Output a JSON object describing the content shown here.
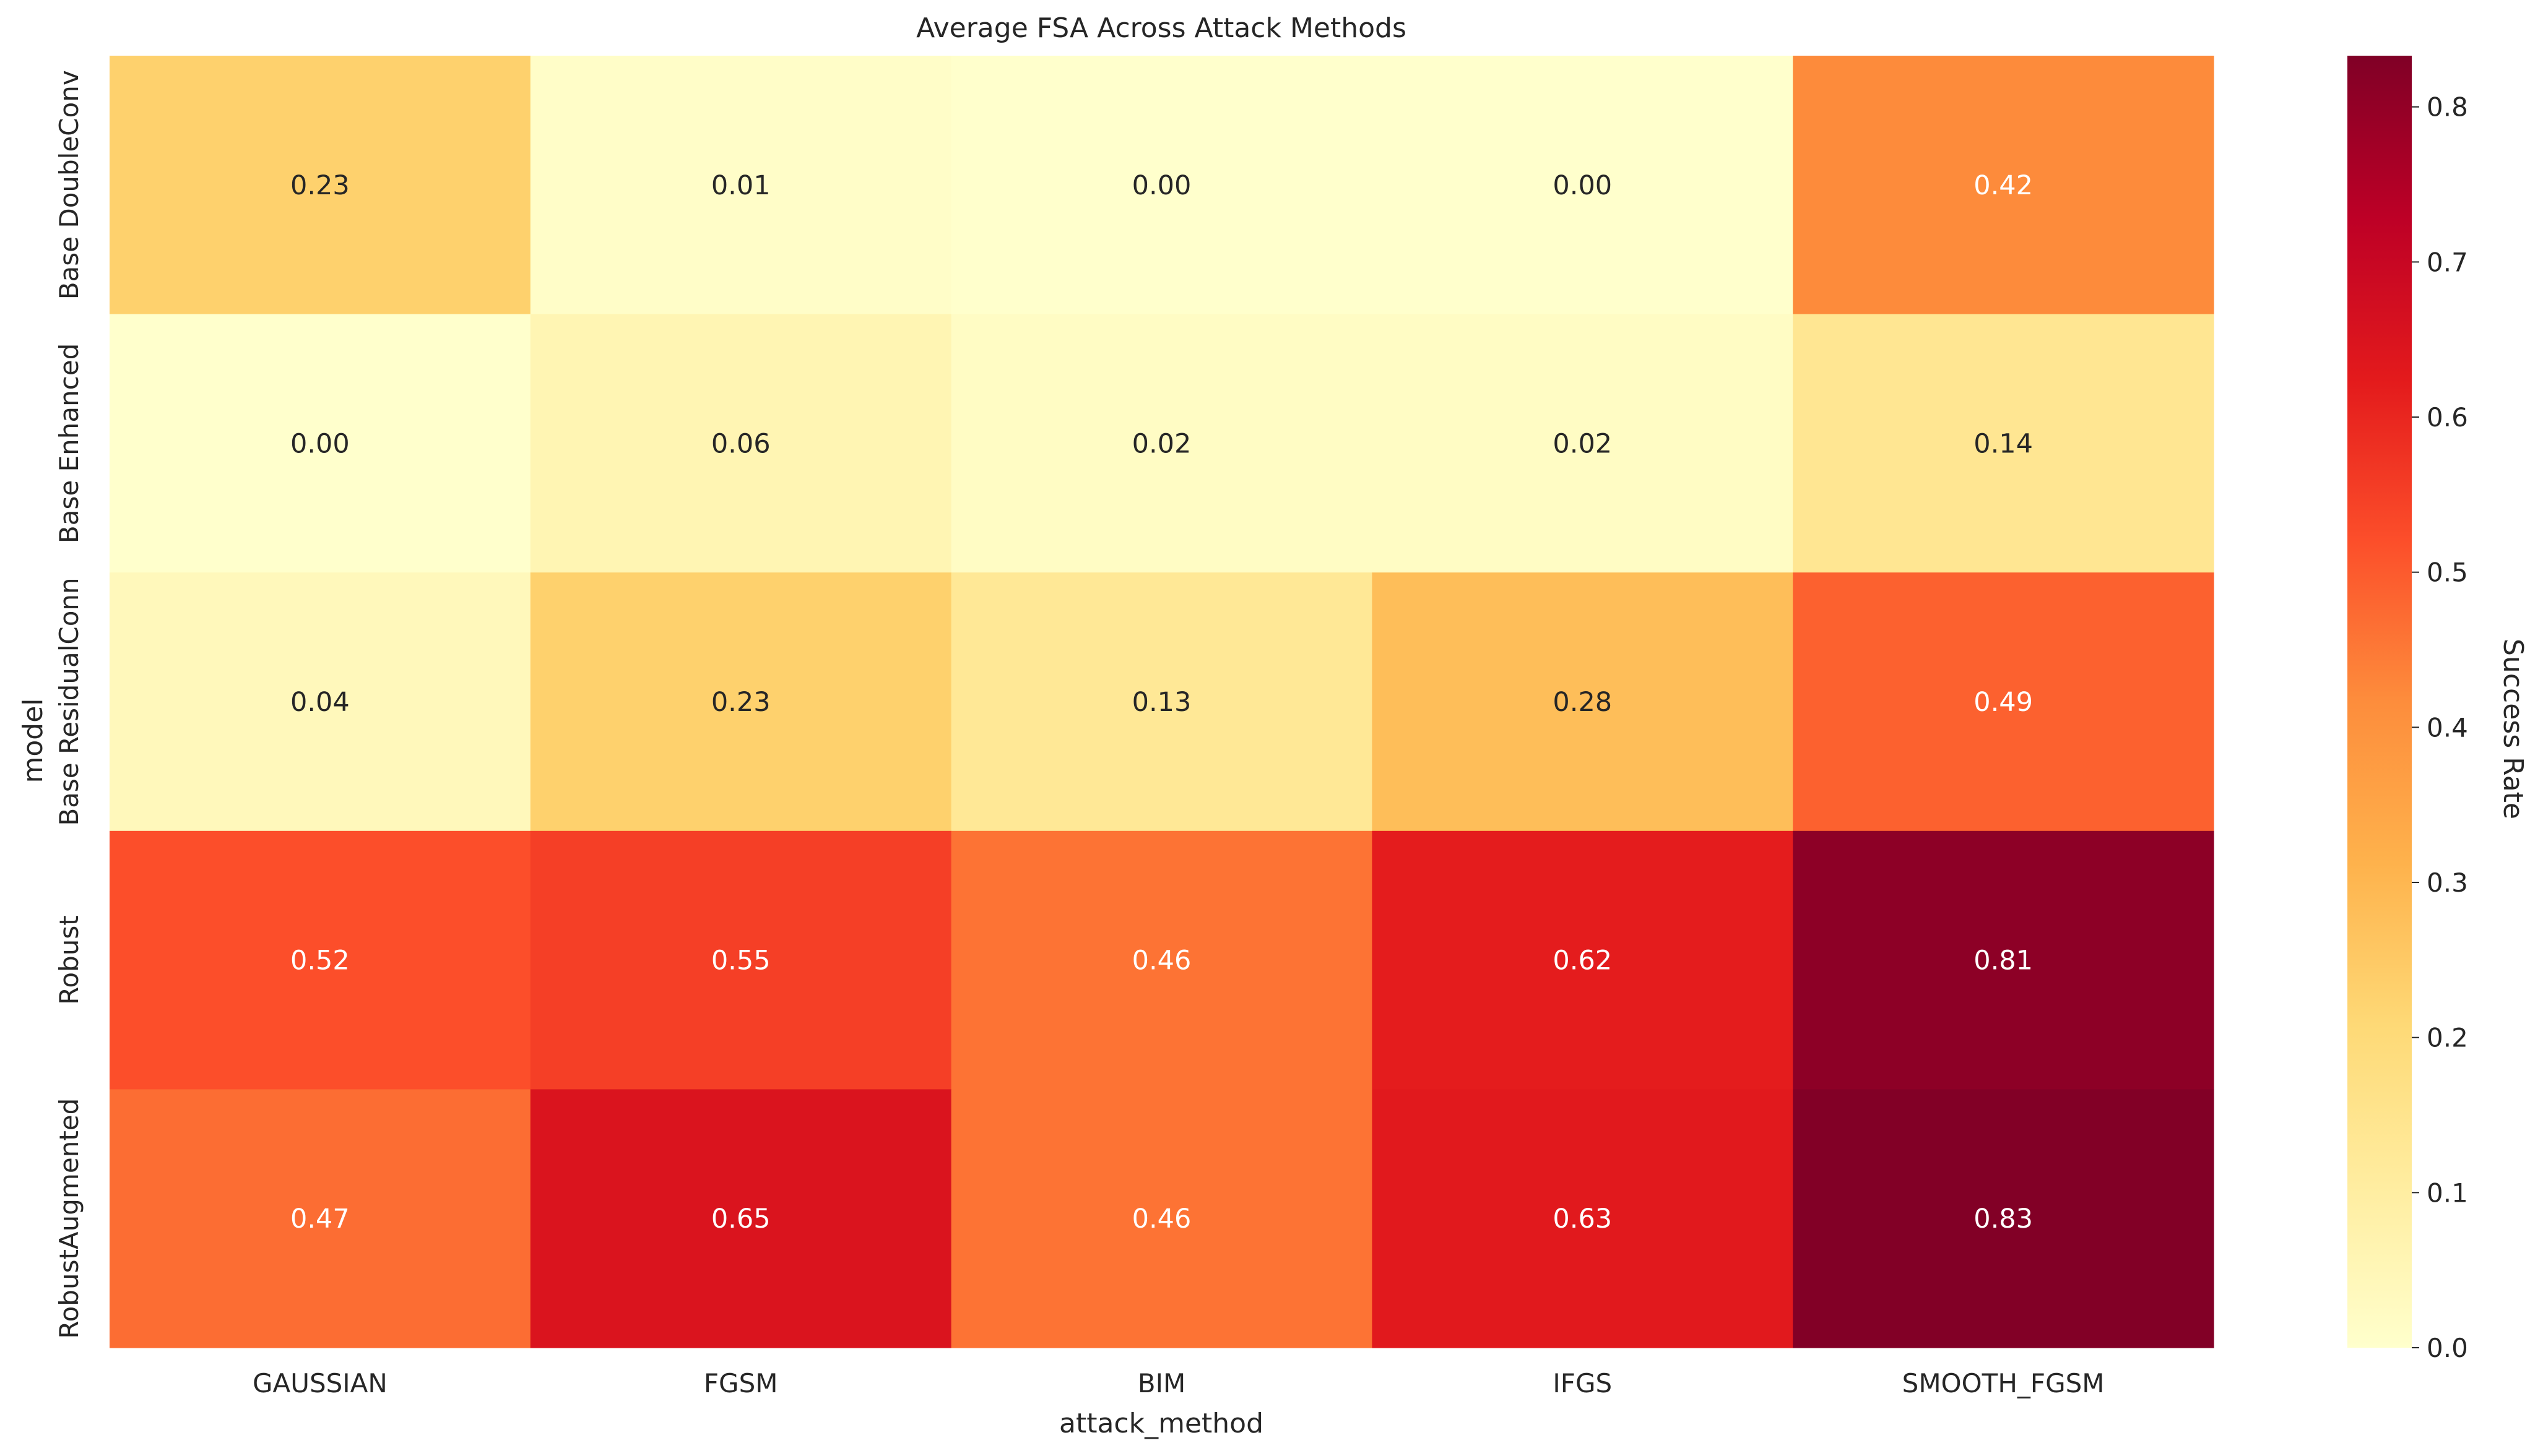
{
  "chart_data": {
    "type": "heatmap",
    "title": "Average FSA Across Attack Methods",
    "xlabel": "attack_method",
    "ylabel": "model",
    "x_categories": [
      "GAUSSIAN",
      "FGSM",
      "BIM",
      "IFGS",
      "SMOOTH_FGSM"
    ],
    "y_categories": [
      "Base DoubleConv",
      "Base Enhanced",
      "Base ResidualConn",
      "Robust",
      "RobustAugmented"
    ],
    "values": [
      [
        0.23,
        0.01,
        0.0,
        0.0,
        0.42
      ],
      [
        0.0,
        0.06,
        0.02,
        0.02,
        0.14
      ],
      [
        0.04,
        0.23,
        0.13,
        0.28,
        0.49
      ],
      [
        0.52,
        0.55,
        0.46,
        0.62,
        0.81
      ],
      [
        0.47,
        0.65,
        0.46,
        0.63,
        0.83
      ]
    ],
    "value_labels": [
      [
        "0.23",
        "0.01",
        "0.00",
        "0.00",
        "0.42"
      ],
      [
        "0.00",
        "0.06",
        "0.02",
        "0.02",
        "0.14"
      ],
      [
        "0.04",
        "0.23",
        "0.13",
        "0.28",
        "0.49"
      ],
      [
        "0.52",
        "0.55",
        "0.46",
        "0.62",
        "0.81"
      ],
      [
        "0.47",
        "0.65",
        "0.46",
        "0.63",
        "0.83"
      ]
    ],
    "colorscale": "YlOrRd",
    "colorbar": {
      "label": "Success Rate",
      "range": [
        0.0,
        0.833
      ],
      "ticks": [
        0.0,
        0.1,
        0.2,
        0.3,
        0.4,
        0.5,
        0.6,
        0.7,
        0.8
      ],
      "tick_labels": [
        "0.0",
        "0.1",
        "0.2",
        "0.3",
        "0.4",
        "0.5",
        "0.6",
        "0.7",
        "0.8"
      ]
    },
    "grid": false
  }
}
